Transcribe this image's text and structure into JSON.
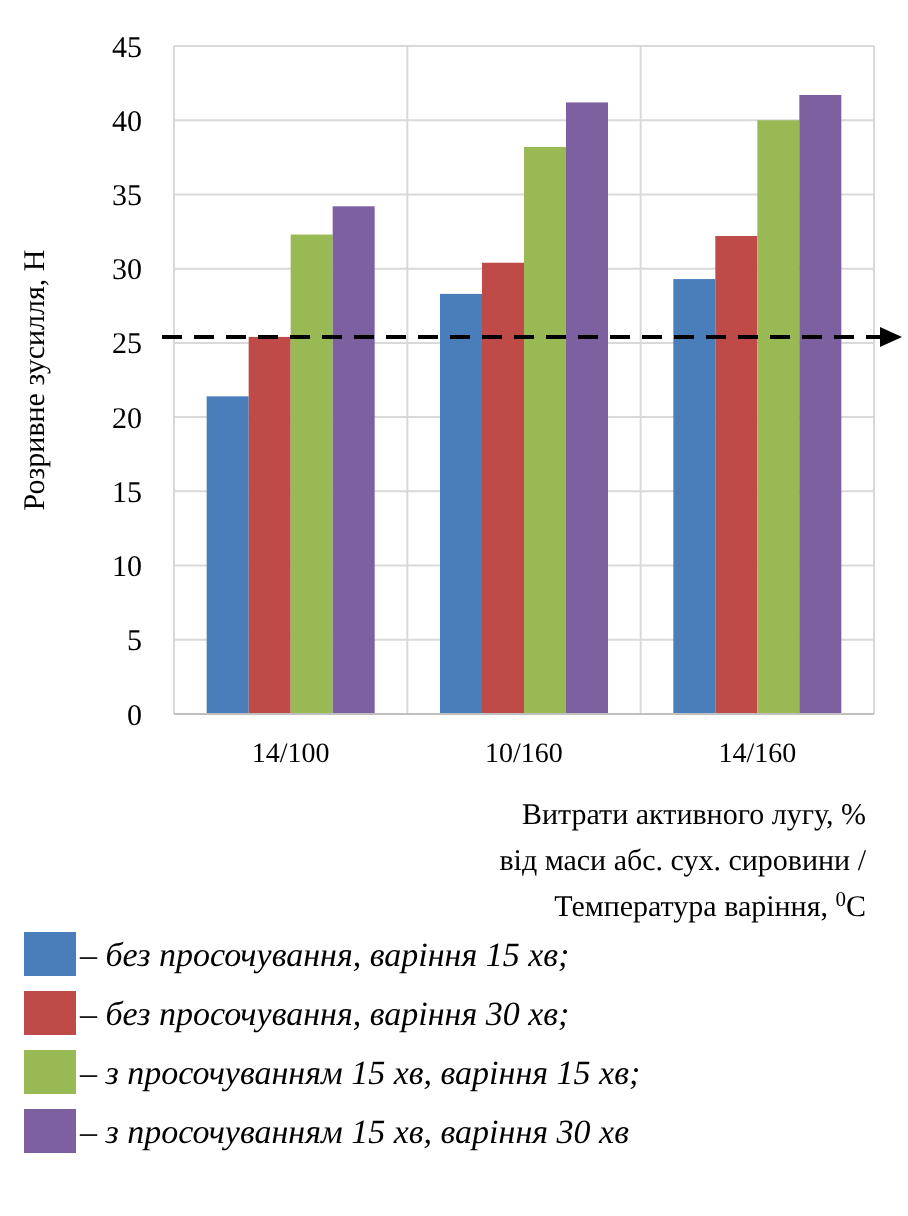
{
  "chart_data": {
    "type": "bar",
    "ylabel": "Розривне зусилля, Н",
    "xlabel": "Витрати активного лугу, %\nвід маси абс. сух. сировини /\nТемпература варіння, $^{0}$C",
    "categories": [
      "14/100",
      "10/160",
      "14/160"
    ],
    "series": [
      {
        "name": "– без просочування, варіння 15 хв;",
        "color": "#4a7ebb",
        "values": [
          21.4,
          28.3,
          29.3
        ]
      },
      {
        "name": "– без просочування, варіння 30 хв;",
        "color": "#be4b48",
        "values": [
          25.4,
          30.4,
          32.2
        ]
      },
      {
        "name": "– з просочуванням 15 хв, варіння 15 хв;",
        "color": "#98b954",
        "values": [
          32.3,
          38.2,
          40.0
        ]
      },
      {
        "name": "– з просочуванням 15 хв, варіння 30 хв",
        "color": "#7d60a0",
        "values": [
          34.2,
          41.2,
          41.7
        ]
      }
    ],
    "ylim": [
      0,
      45
    ],
    "yticks": [
      0,
      5,
      10,
      15,
      20,
      25,
      30,
      35,
      40,
      45
    ],
    "grid": true,
    "legend": "bottom",
    "ref_lines": [
      {
        "axis": "y",
        "value": 25.4,
        "color": "#000000",
        "line_style": "dashed"
      }
    ]
  }
}
